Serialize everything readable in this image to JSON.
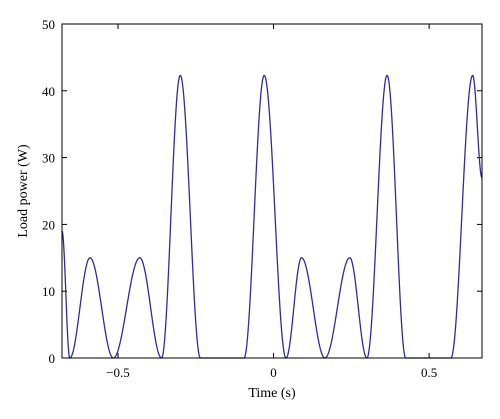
{
  "chart_data": {
    "type": "line",
    "xlabel": "Time (s)",
    "ylabel": "Load power (W)",
    "xlim": [
      -0.68,
      0.67
    ],
    "ylim": [
      0,
      50
    ],
    "x_ticks": [
      -0.5,
      0,
      0.5
    ],
    "x_tick_labels": [
      "−0.5",
      "0",
      "0.5"
    ],
    "y_ticks": [
      0,
      10,
      20,
      30,
      40,
      50
    ],
    "y_tick_labels": [
      "0",
      "10",
      "20",
      "30",
      "40",
      "50"
    ],
    "grid": false,
    "line_color": "#2e2c9e",
    "series": [
      {
        "peaks": [
          {
            "x": -0.68,
            "y": 19.0
          },
          {
            "x": -0.59,
            "y": 15.0
          },
          {
            "x": -0.43,
            "y": 15.0
          },
          {
            "x": -0.3,
            "y": 42.3
          },
          {
            "x": -0.03,
            "y": 42.3
          },
          {
            "x": 0.09,
            "y": 15.0
          },
          {
            "x": 0.245,
            "y": 15.0
          },
          {
            "x": 0.365,
            "y": 42.3
          },
          {
            "x": 0.64,
            "y": 42.3
          }
        ],
        "zeros": [
          -0.655,
          -0.515,
          -0.36,
          -0.235,
          -0.095,
          0.04,
          0.165,
          0.3,
          0.425,
          0.57
        ],
        "end_value": 27
      }
    ]
  }
}
